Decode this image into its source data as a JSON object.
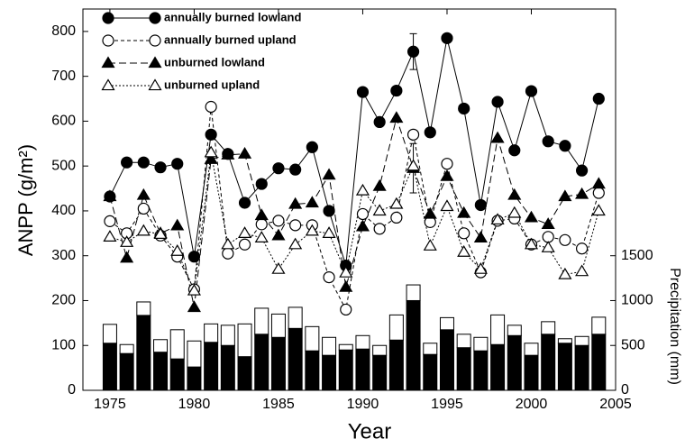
{
  "chart_data": {
    "type": "line",
    "x_label": "Year",
    "y_label": "ANPP (g/m²)",
    "y2_label": "Precipitation  (mm)",
    "x": [
      1975,
      1976,
      1977,
      1978,
      1979,
      1980,
      1981,
      1982,
      1983,
      1984,
      1985,
      1986,
      1987,
      1988,
      1989,
      1990,
      1991,
      1992,
      1993,
      1994,
      1995,
      1996,
      1997,
      1998,
      1999,
      2000,
      2001,
      2002,
      2003,
      2004
    ],
    "xlim": [
      1973.4,
      2005
    ],
    "xticks": [
      1975,
      1980,
      1985,
      1990,
      1995,
      2000,
      2005
    ],
    "ylim": [
      0,
      850
    ],
    "yticks": [
      0,
      100,
      200,
      300,
      400,
      500,
      600,
      700,
      800
    ],
    "y2lim": [
      0,
      4250
    ],
    "y2ticks": [
      0,
      500,
      1000,
      1500
    ],
    "legend": "upper left",
    "series": [
      {
        "name": "annually burned lowland",
        "color": "#000",
        "marker": "circle",
        "marker_fill": "#000",
        "dash": "none",
        "values": [
          432,
          508,
          508,
          497,
          505,
          298,
          570,
          527,
          418,
          460,
          495,
          492,
          542,
          400,
          278,
          665,
          598,
          668,
          755,
          575,
          785,
          628,
          413,
          643,
          535,
          667,
          555,
          545,
          490,
          650
        ],
        "errors": [
          null,
          null,
          null,
          null,
          null,
          null,
          null,
          null,
          null,
          null,
          null,
          null,
          null,
          null,
          null,
          null,
          null,
          null,
          40,
          null,
          null,
          null,
          null,
          null,
          null,
          null,
          null,
          null,
          null,
          null
        ]
      },
      {
        "name": "annually burned upland",
        "color": "#000",
        "marker": "circle",
        "marker_fill": "#fff",
        "dash": "4 3",
        "values": [
          377,
          350,
          405,
          345,
          298,
          225,
          632,
          305,
          325,
          370,
          378,
          368,
          368,
          252,
          180,
          393,
          360,
          385,
          570,
          375,
          505,
          350,
          263,
          378,
          383,
          325,
          342,
          335,
          316,
          440
        ]
      },
      {
        "name": "unburned lowland",
        "color": "#000",
        "marker": "triangle",
        "marker_fill": "#000",
        "dash": "8 4",
        "values": [
          432,
          295,
          435,
          350,
          367,
          185,
          515,
          525,
          527,
          390,
          345,
          415,
          418,
          480,
          230,
          365,
          455,
          607,
          495,
          393,
          477,
          395,
          340,
          562,
          435,
          385,
          370,
          432,
          437,
          460
        ],
        "errors": [
          null,
          null,
          null,
          null,
          null,
          null,
          null,
          null,
          null,
          null,
          null,
          null,
          null,
          null,
          null,
          null,
          null,
          null,
          55,
          null,
          null,
          null,
          null,
          null,
          null,
          null,
          null,
          null,
          null,
          null
        ]
      },
      {
        "name": "unburned upland",
        "color": "#000",
        "marker": "triangle",
        "marker_fill": "#fff",
        "dash": "2 2",
        "values": [
          342,
          330,
          355,
          348,
          310,
          222,
          530,
          325,
          350,
          340,
          270,
          325,
          355,
          350,
          262,
          445,
          400,
          415,
          500,
          322,
          410,
          308,
          270,
          380,
          395,
          325,
          318,
          258,
          265,
          400
        ]
      },
      {
        "type": "bar",
        "axis": "y2",
        "color": "#000",
        "values": [
          525,
          410,
          835,
          425,
          350,
          260,
          535,
          500,
          375,
          625,
          590,
          690,
          440,
          390,
          450,
          460,
          390,
          560,
          1000,
          400,
          675,
          475,
          440,
          510,
          610,
          390,
          625,
          525,
          500,
          625
        ]
      },
      {
        "type": "bar",
        "axis": "y2",
        "color": "#fff",
        "values": [
          210,
          100,
          150,
          140,
          325,
          290,
          205,
          225,
          365,
          290,
          260,
          235,
          270,
          200,
          60,
          150,
          110,
          280,
          175,
          125,
          135,
          150,
          150,
          330,
          115,
          135,
          140,
          50,
          100,
          190
        ]
      }
    ]
  }
}
